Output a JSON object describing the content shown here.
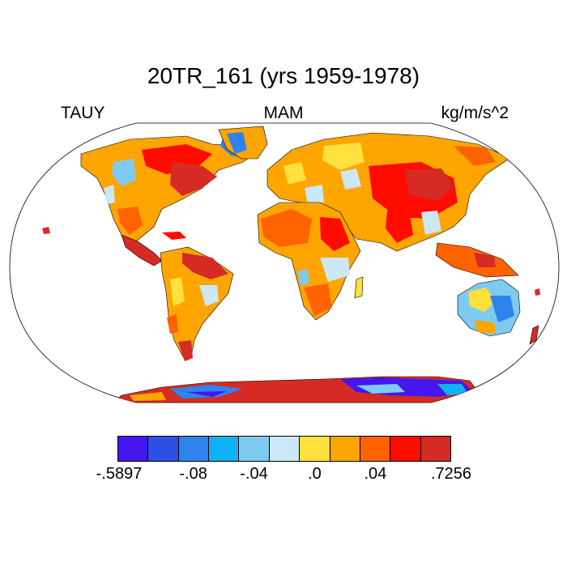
{
  "title": "20TR_161 (yrs 1959-1978)",
  "labels": {
    "left": "TAUY",
    "center": "MAM",
    "right": "kg/m/s^2"
  },
  "map": {
    "projection": "Robinson",
    "fill_colors": {
      "ocean": "#ffffff",
      "outline": "#000000"
    }
  },
  "colorbar": {
    "colors": [
      "#4416f0",
      "#2d4fe6",
      "#2e83ee",
      "#0fb2f4",
      "#7ecbf2",
      "#cce7f5",
      "#ffe03c",
      "#ffa500",
      "#ff6200",
      "#ff0c00",
      "#d52b24"
    ],
    "tick_labels": [
      {
        "text": "-.5897",
        "boundary": 0
      },
      {
        "text": "-.08",
        "boundary": 2
      },
      {
        "text": "-.04",
        "boundary": 4
      },
      {
        "text": ".0",
        "boundary": 6
      },
      {
        "text": ".04",
        "boundary": 8
      },
      {
        "text": ".7256",
        "boundary": 10
      }
    ]
  }
}
